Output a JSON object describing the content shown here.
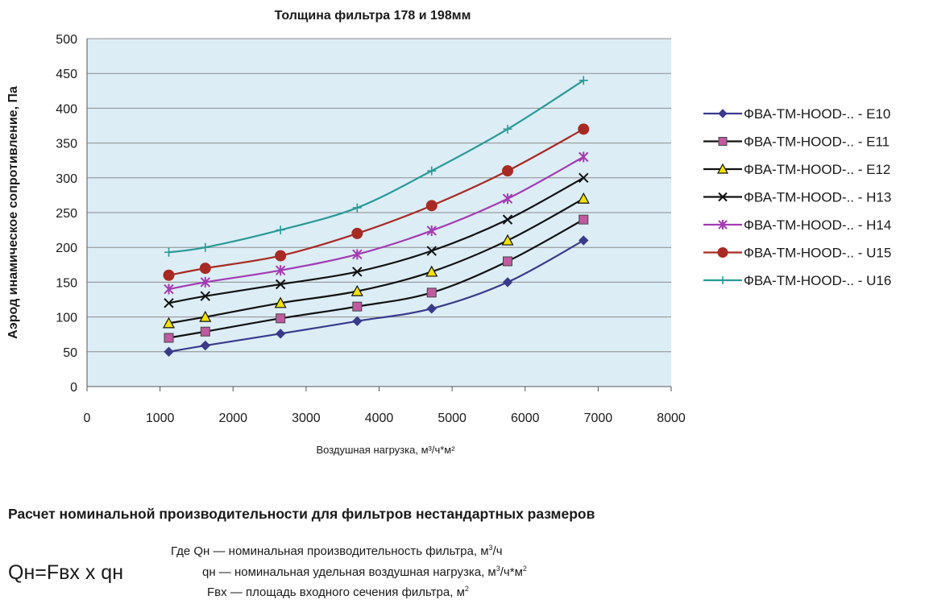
{
  "chart_data": {
    "type": "line",
    "title": "Толщина фильтра 178 и 198мм",
    "xlabel": "Воздушная нагрузка, м³/ч*м²",
    "ylabel": "Аэрод инамическое сопротивление, Па",
    "xlim": [
      0,
      8000
    ],
    "ylim": [
      0,
      500
    ],
    "x_ticks": [
      "0",
      "1000",
      "2000",
      "3000",
      "4000",
      "5000",
      "6000",
      "7000",
      "8000"
    ],
    "y_ticks": [
      "0",
      "50",
      "100",
      "150",
      "200",
      "250",
      "300",
      "350",
      "400",
      "450",
      "500"
    ],
    "grid": "horizontal",
    "plot_background": "#dcedf6",
    "legend_position": "right",
    "x": [
      1120,
      1620,
      2650,
      3700,
      4720,
      5760,
      6800
    ],
    "series": [
      {
        "name": "ФВА-ТМ-HOOD-.. - E10",
        "color": "#3a3a8c",
        "marker": "diamond",
        "values": [
          50,
          59,
          76,
          94,
          112,
          150,
          210
        ]
      },
      {
        "name": "ФВА-ТМ-HOOD-.. - E11",
        "color": "#111111",
        "marker": "square",
        "marker_fill": "#c05ba0",
        "values": [
          70,
          79,
          98,
          115,
          135,
          180,
          240
        ]
      },
      {
        "name": "ФВА-ТМ-HOOD-.. - E12",
        "color": "#111111",
        "marker": "triangle",
        "marker_fill": "#f2e200",
        "values": [
          91,
          100,
          120,
          137,
          165,
          210,
          270
        ]
      },
      {
        "name": "ФВА-ТМ-HOOD-.. - H13",
        "color": "#111111",
        "marker": "x",
        "values": [
          120,
          130,
          147,
          165,
          195,
          240,
          300
        ]
      },
      {
        "name": "ФВА-ТМ-HOOD-.. - H14",
        "color": "#a43ab5",
        "marker": "star",
        "values": [
          140,
          150,
          167,
          190,
          224,
          270,
          330
        ]
      },
      {
        "name": "ФВА-ТМ-HOOD-.. - U15",
        "color": "#a82a24",
        "marker": "circle",
        "values": [
          160,
          170,
          188,
          220,
          260,
          310,
          370
        ]
      },
      {
        "name": "ФВА-ТМ-HOOD-.. - U16",
        "color": "#2a9a96",
        "marker": "plus",
        "values": [
          193,
          200,
          225,
          257,
          310,
          370,
          440
        ]
      }
    ]
  },
  "calc": {
    "heading": "Расчет номинальной производительности для фильтров нестандартных размеров",
    "formula": "Qн=Fвх x qн",
    "lines": [
      {
        "text": "Где Qн — номинальная производительность фильтра, м",
        "sup": "3",
        "tail": "/ч"
      },
      {
        "text": "qн — номинальная удельная воздушная нагрузка, м",
        "sup": "3",
        "tail": "/ч*м",
        "sup2": "2"
      },
      {
        "text": "Fвх — площадь входного сечения фильтра, м",
        "sup": "2",
        "tail": ""
      }
    ]
  }
}
